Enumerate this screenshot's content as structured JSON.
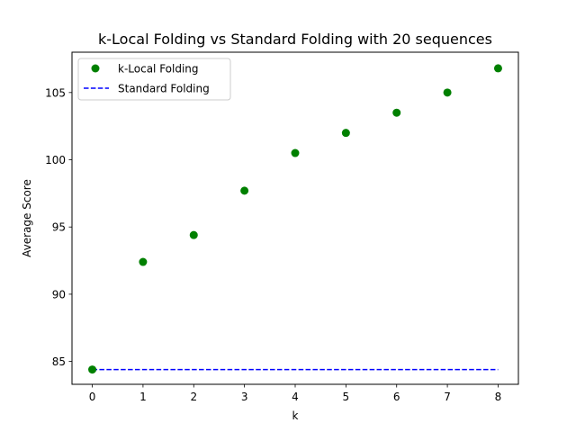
{
  "chart_data": {
    "type": "scatter",
    "title": "k-Local Folding vs Standard Folding with 20 sequences",
    "xlabel": "k",
    "ylabel": "Average Score",
    "xlim": [
      -0.4,
      8.4
    ],
    "ylim": [
      83.3,
      108.0
    ],
    "xticks": [
      0,
      1,
      2,
      3,
      4,
      5,
      6,
      7,
      8
    ],
    "yticks": [
      85,
      90,
      95,
      100,
      105
    ],
    "grid": false,
    "legend_position": "top-left",
    "series": [
      {
        "name": "k-Local Folding",
        "kind": "scatter",
        "color": "#008000",
        "x": [
          0,
          1,
          2,
          3,
          4,
          5,
          6,
          7,
          8
        ],
        "y": [
          84.4,
          92.4,
          94.4,
          97.7,
          100.5,
          102.0,
          103.5,
          105.0,
          106.8
        ]
      },
      {
        "name": "Standard Folding",
        "kind": "line",
        "style": "dashed",
        "color": "#0000ff",
        "x": [
          0,
          8
        ],
        "y": [
          84.4,
          84.4
        ]
      }
    ]
  }
}
